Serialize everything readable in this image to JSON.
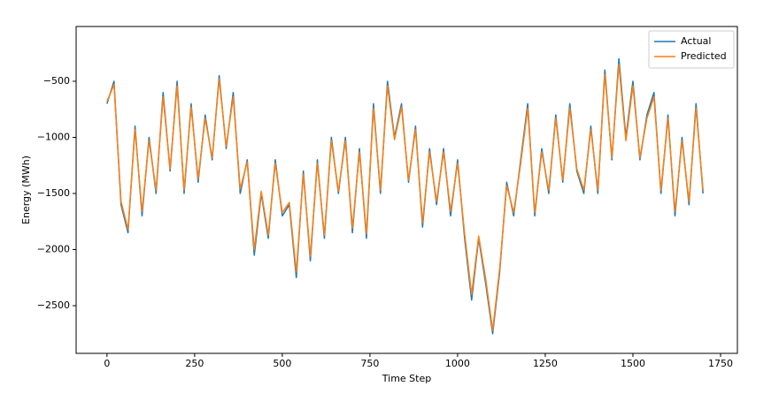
{
  "chart_data": {
    "type": "line",
    "xlabel": "Time Step",
    "ylabel": "Energy (MWh)",
    "x": [
      0,
      20,
      40,
      60,
      80,
      100,
      120,
      140,
      160,
      180,
      200,
      220,
      240,
      260,
      280,
      300,
      320,
      340,
      360,
      380,
      400,
      420,
      440,
      460,
      480,
      500,
      520,
      540,
      560,
      580,
      600,
      620,
      640,
      660,
      680,
      700,
      720,
      740,
      760,
      780,
      800,
      820,
      840,
      860,
      880,
      900,
      920,
      940,
      960,
      980,
      1000,
      1020,
      1040,
      1060,
      1080,
      1100,
      1120,
      1140,
      1160,
      1180,
      1200,
      1220,
      1240,
      1260,
      1280,
      1300,
      1320,
      1340,
      1360,
      1380,
      1400,
      1420,
      1440,
      1460,
      1480,
      1500,
      1520,
      1540,
      1560,
      1580,
      1600,
      1620,
      1640,
      1660,
      1680,
      1700
    ],
    "series": [
      {
        "name": "Actual",
        "color": "#1f77b4",
        "values": [
          -700,
          -500,
          -1600,
          -1850,
          -900,
          -1700,
          -1000,
          -1500,
          -600,
          -1300,
          -500,
          -1500,
          -700,
          -1400,
          -800,
          -1200,
          -450,
          -1100,
          -600,
          -1500,
          -1200,
          -2050,
          -1500,
          -1900,
          -1200,
          -1700,
          -1600,
          -2250,
          -1300,
          -2100,
          -1200,
          -1900,
          -1000,
          -1500,
          -1000,
          -1850,
          -1100,
          -1900,
          -700,
          -1500,
          -500,
          -1000,
          -700,
          -1400,
          -900,
          -1800,
          -1100,
          -1600,
          -1100,
          -1700,
          -1200,
          -1900,
          -2450,
          -1900,
          -2300,
          -2750,
          -2200,
          -1400,
          -1700,
          -1200,
          -700,
          -1700,
          -1100,
          -1500,
          -800,
          -1400,
          -700,
          -1300,
          -1500,
          -900,
          -1500,
          -400,
          -1200,
          -300,
          -1000,
          -500,
          -1200,
          -800,
          -600,
          -1500,
          -800,
          -1700,
          -1000,
          -1600,
          -700,
          -1500
        ]
      },
      {
        "name": "Predicted",
        "color": "#ff7f0e",
        "values": [
          -680,
          -530,
          -1570,
          -1820,
          -930,
          -1660,
          -1030,
          -1470,
          -640,
          -1280,
          -540,
          -1470,
          -730,
          -1370,
          -830,
          -1180,
          -480,
          -1080,
          -640,
          -1460,
          -1220,
          -2000,
          -1480,
          -1870,
          -1230,
          -1670,
          -1580,
          -2200,
          -1330,
          -2060,
          -1230,
          -1870,
          -1030,
          -1480,
          -1030,
          -1810,
          -1130,
          -1860,
          -740,
          -1470,
          -540,
          -1020,
          -730,
          -1380,
          -930,
          -1760,
          -1130,
          -1570,
          -1130,
          -1660,
          -1230,
          -1860,
          -2400,
          -1880,
          -2260,
          -2720,
          -2170,
          -1430,
          -1670,
          -1230,
          -740,
          -1670,
          -1130,
          -1470,
          -830,
          -1380,
          -740,
          -1280,
          -1470,
          -930,
          -1470,
          -440,
          -1180,
          -350,
          -1030,
          -540,
          -1180,
          -830,
          -640,
          -1470,
          -830,
          -1660,
          -1030,
          -1570,
          -740,
          -1470
        ]
      }
    ],
    "xlim": [
      -88,
      1798
    ],
    "ylim": [
      -2925,
      -12
    ],
    "xticks": [
      0,
      250,
      500,
      750,
      1000,
      1250,
      1500,
      1750
    ],
    "yticks": [
      {
        "value": -2500,
        "label": "−2500"
      },
      {
        "value": -2000,
        "label": "−2000"
      },
      {
        "value": -1500,
        "label": "−1500"
      },
      {
        "value": -1000,
        "label": "−1000"
      },
      {
        "value": -500,
        "label": "−500"
      }
    ],
    "legend": "upper right"
  }
}
